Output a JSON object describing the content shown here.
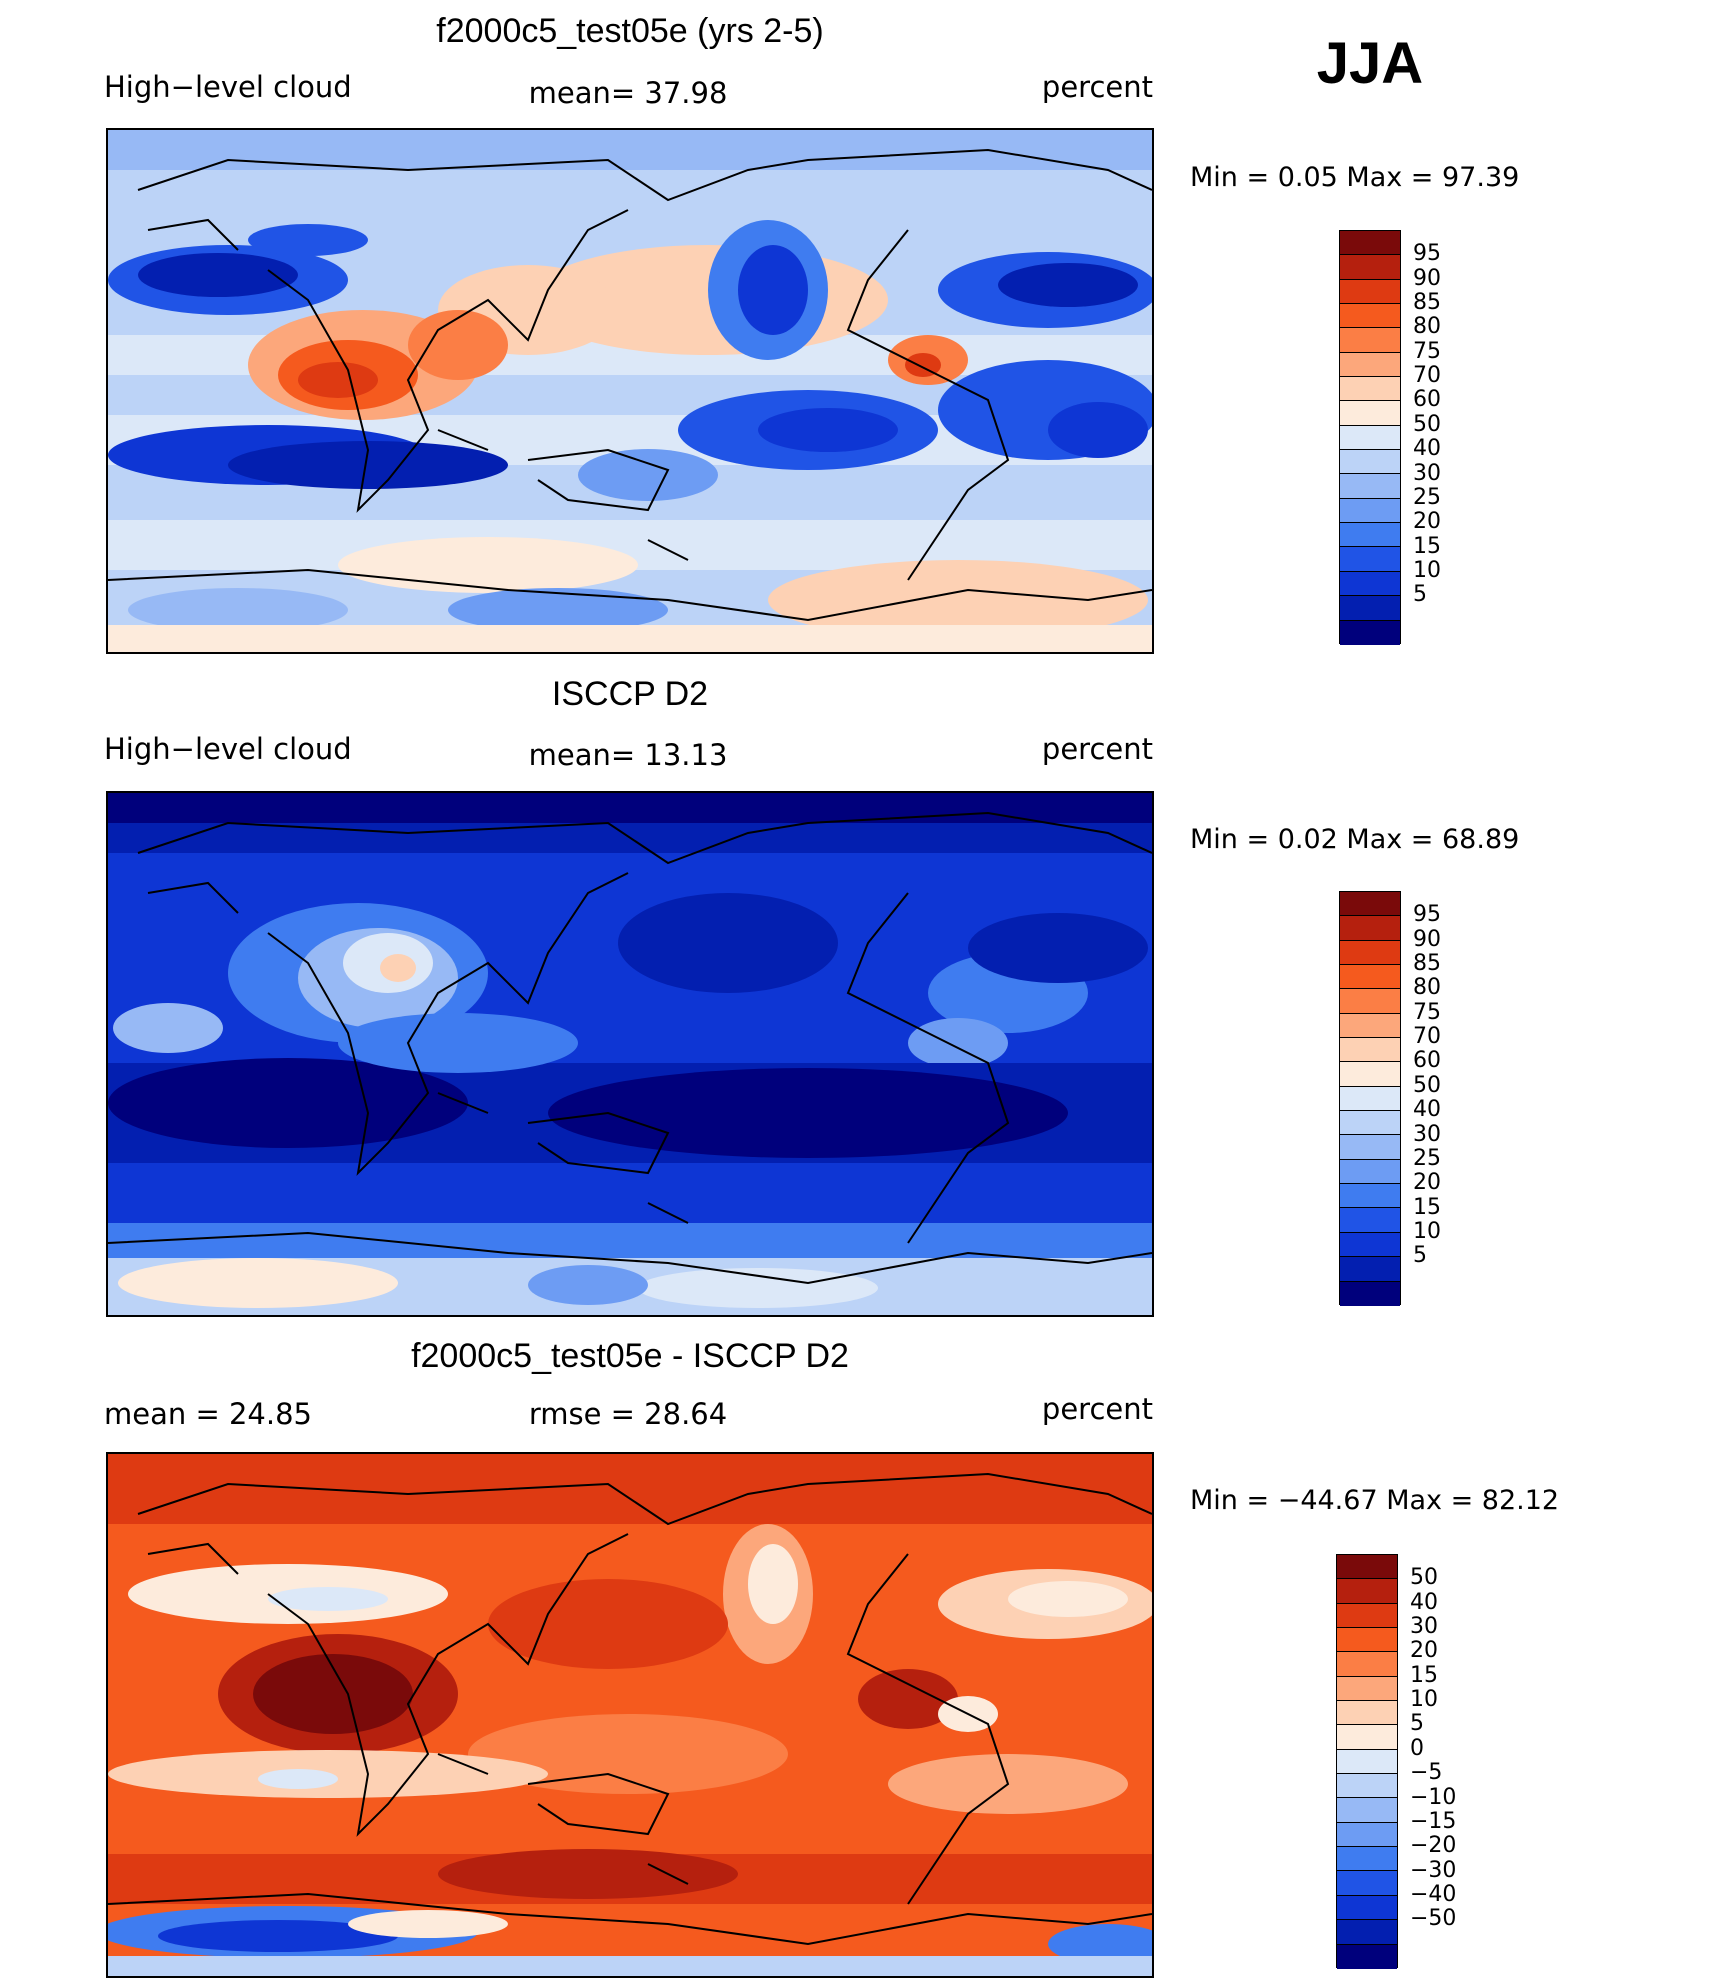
{
  "season": "JJA",
  "panels": [
    {
      "title": "f2000c5_test05e (yrs 2-5)",
      "left_label": "High−level cloud",
      "center_label": "mean=  37.98",
      "right_label": "percent",
      "minmax": "Min =    0.05 Max =   97.39",
      "colorbar": {
        "colors": [
          "#7a0a0a",
          "#b5200e",
          "#de3a12",
          "#f55a1e",
          "#fb7e45",
          "#fca77b",
          "#fdd1b4",
          "#fdebdc",
          "#dce8f8",
          "#bcd3f7",
          "#97b9f5",
          "#6d9cf3",
          "#3f7cf0",
          "#2054e6",
          "#0e36d4",
          "#031fb0",
          "#00007c"
        ],
        "labels": [
          "95",
          "90",
          "85",
          "80",
          "75",
          "70",
          "60",
          "50",
          "40",
          "30",
          "25",
          "20",
          "15",
          "10",
          "5"
        ]
      }
    },
    {
      "title": "ISCCP D2",
      "left_label": "High−level cloud",
      "center_label": "mean=  13.13",
      "right_label": "percent",
      "minmax": "Min =    0.02 Max =   68.89",
      "colorbar": {
        "colors": [
          "#7a0a0a",
          "#b5200e",
          "#de3a12",
          "#f55a1e",
          "#fb7e45",
          "#fca77b",
          "#fdd1b4",
          "#fdebdc",
          "#dce8f8",
          "#bcd3f7",
          "#97b9f5",
          "#6d9cf3",
          "#3f7cf0",
          "#2054e6",
          "#0e36d4",
          "#031fb0",
          "#00007c"
        ],
        "labels": [
          "95",
          "90",
          "85",
          "80",
          "75",
          "70",
          "60",
          "50",
          "40",
          "30",
          "25",
          "20",
          "15",
          "10",
          "5"
        ]
      }
    },
    {
      "title": "f2000c5_test05e - ISCCP D2",
      "left_label": "mean =   24.85",
      "center_label": "rmse =   28.64",
      "right_label": "percent",
      "minmax": "Min = −44.67 Max =   82.12",
      "colorbar": {
        "colors": [
          "#7a0a0a",
          "#b5200e",
          "#de3a12",
          "#f55a1e",
          "#fb7e45",
          "#fca77b",
          "#fdd1b4",
          "#fdebdc",
          "#dce8f8",
          "#bcd3f7",
          "#97b9f5",
          "#6d9cf3",
          "#3f7cf0",
          "#2054e6",
          "#0e36d4",
          "#031fb0",
          "#00007c"
        ],
        "labels": [
          "50",
          "40",
          "30",
          "20",
          "15",
          "10",
          "5",
          "0",
          "−5",
          "−10",
          "−15",
          "−20",
          "−30",
          "−40",
          "−50"
        ]
      }
    }
  ]
}
